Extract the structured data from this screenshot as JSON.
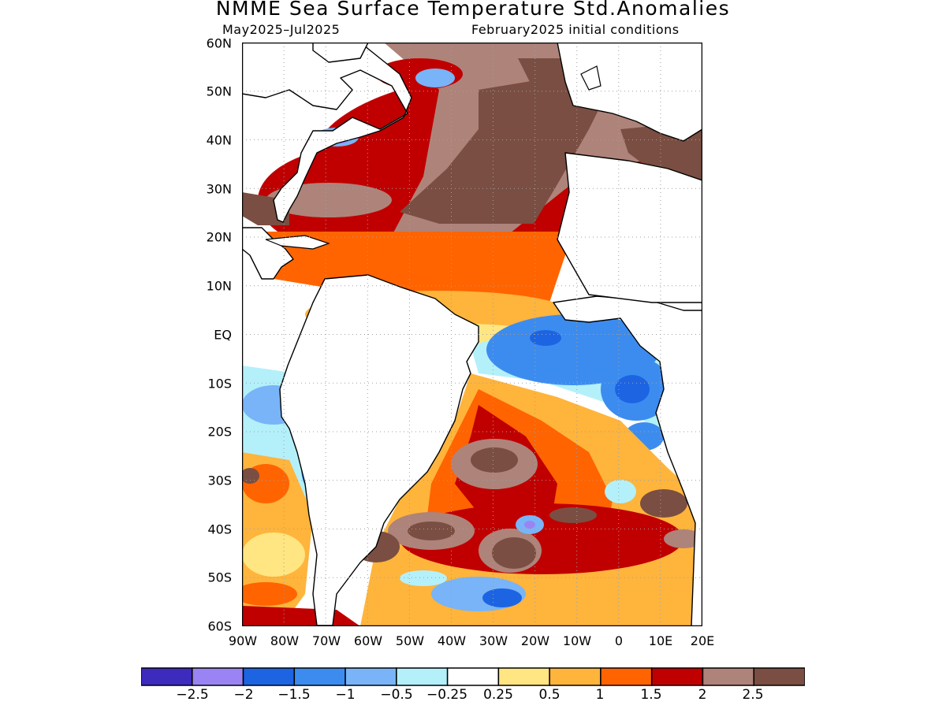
{
  "figure": {
    "title": "NMME Sea Surface Temperature Std.Anomalies",
    "period": "May2025–Jul2025",
    "init": "February2025 initial conditions"
  },
  "axes": {
    "lat_labels": [
      "60N",
      "50N",
      "40N",
      "30N",
      "20N",
      "10N",
      "EQ",
      "10S",
      "20S",
      "30S",
      "40S",
      "50S",
      "60S"
    ],
    "lon_labels": [
      "90W",
      "80W",
      "70W",
      "60W",
      "50W",
      "40W",
      "30W",
      "20W",
      "10W",
      "0",
      "10E",
      "20E"
    ]
  },
  "colorbar": {
    "labels": [
      "−2.5",
      "−2",
      "−1.5",
      "−1",
      "−0.5",
      "−0.25",
      "0.25",
      "0.5",
      "1",
      "1.5",
      "2",
      "2.5"
    ],
    "colors": [
      "#3c2bbd",
      "#9a84f3",
      "#1d64e3",
      "#3c8cf0",
      "#78b4f7",
      "#b4f0fa",
      "#ffffff",
      "#ffe682",
      "#ffb43c",
      "#ff6400",
      "#c00000",
      "#ae837a",
      "#7a4e42"
    ]
  },
  "map_colors": {
    "land": "#ffffff",
    "coast": "#000000",
    "grid": "#a0a0a0"
  }
}
